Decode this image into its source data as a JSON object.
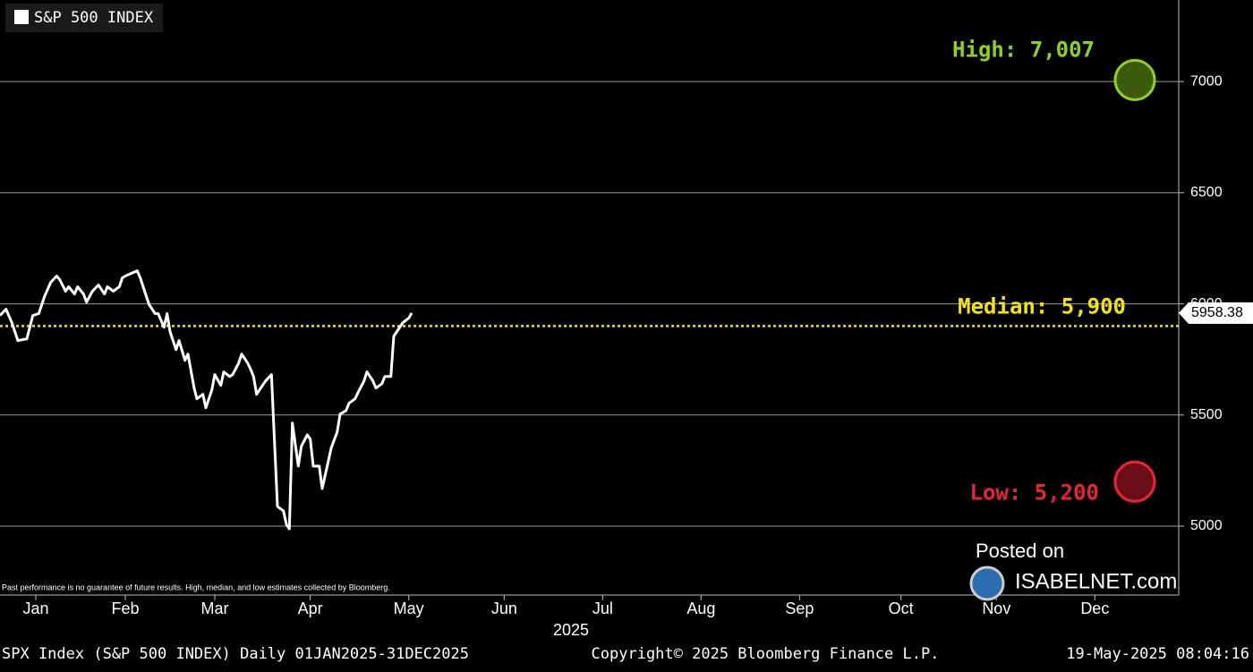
{
  "chart_data": {
    "type": "line",
    "title": "S&P 500 INDEX",
    "series": [
      {
        "name": "S&P 500 INDEX",
        "color": "#ffffff",
        "x": [
          1,
          3,
          5,
          7,
          10,
          12,
          14,
          16,
          18,
          20,
          21,
          23,
          24,
          26,
          27,
          29,
          30,
          32,
          34,
          36,
          37,
          39,
          41,
          42,
          43,
          45,
          47,
          48,
          50,
          51,
          53,
          54,
          56,
          57,
          58,
          60,
          61,
          63,
          64,
          66,
          67,
          69,
          70,
          72,
          73,
          75,
          76,
          78,
          79,
          81,
          82,
          84,
          85,
          86,
          87,
          89,
          90,
          92,
          94,
          96,
          97,
          98,
          99,
          101,
          102,
          104,
          105,
          106,
          108,
          109,
          111,
          112,
          114,
          115,
          117,
          118,
          120,
          121,
          123,
          124,
          126,
          127,
          129,
          130,
          132,
          133,
          135,
          136,
          138,
          139
        ],
        "values": [
          5948,
          5976,
          5915,
          5835,
          5843,
          5948,
          5956,
          6036,
          6097,
          6125,
          6109,
          6057,
          6077,
          6044,
          6077,
          6044,
          6008,
          6057,
          6085,
          6044,
          6077,
          6057,
          6077,
          6117,
          6125,
          6137,
          6149,
          6117,
          6036,
          5996,
          5956,
          5956,
          5895,
          5956,
          5875,
          5794,
          5835,
          5746,
          5774,
          5625,
          5573,
          5593,
          5532,
          5613,
          5682,
          5633,
          5694,
          5673,
          5682,
          5734,
          5774,
          5734,
          5706,
          5673,
          5593,
          5633,
          5653,
          5682,
          5089,
          5069,
          5008,
          4988,
          5464,
          5270,
          5359,
          5411,
          5391,
          5270,
          5270,
          5169,
          5290,
          5351,
          5423,
          5504,
          5520,
          5553,
          5573,
          5601,
          5653,
          5694,
          5653,
          5621,
          5641,
          5673,
          5673,
          5855,
          5895,
          5915,
          5936,
          5958.38
        ]
      }
    ],
    "last_price": 5958.38,
    "xlim": [
      1,
      394
    ],
    "xticks": [
      {
        "value": 13,
        "label": "Jan"
      },
      {
        "value": 43,
        "label": "Feb"
      },
      {
        "value": 73,
        "label": "Mar"
      },
      {
        "value": 105,
        "label": "Apr"
      },
      {
        "value": 138,
        "label": "May"
      },
      {
        "value": 170,
        "label": "Jun"
      },
      {
        "value": 203,
        "label": "Jul"
      },
      {
        "value": 236,
        "label": "Aug"
      },
      {
        "value": 269,
        "label": "Sep"
      },
      {
        "value": 303,
        "label": "Oct"
      },
      {
        "value": 335,
        "label": "Nov"
      },
      {
        "value": 368,
        "label": "Dec"
      }
    ],
    "x_year_label": "2025",
    "ylim": [
      4690,
      7367
    ],
    "yticks": [
      5000,
      5500,
      6000,
      6500,
      7000
    ],
    "grid": true,
    "estimates": {
      "high": {
        "label": "High: 7,007",
        "value": 7007,
        "color": "#8fd11f"
      },
      "median": {
        "label": "Median: 5,900",
        "value": 5900,
        "color": "#f2e600"
      },
      "low": {
        "label": "Low: 5,200",
        "value": 5200,
        "color": "#e8233a"
      }
    },
    "disclaimer": "Past performance is no guarantee of future results. High, median, and low estimates collected by Bloomberg.",
    "watermark": {
      "line1": "Posted on",
      "line2": "ISABELNET.com"
    },
    "footer": {
      "left": "SPX Index (S&P 500 INDEX)  Daily 01JAN2025-31DEC2025",
      "center": "Copyright© 2025 Bloomberg Finance L.P.",
      "right": "19-May-2025 08:04:16"
    }
  }
}
